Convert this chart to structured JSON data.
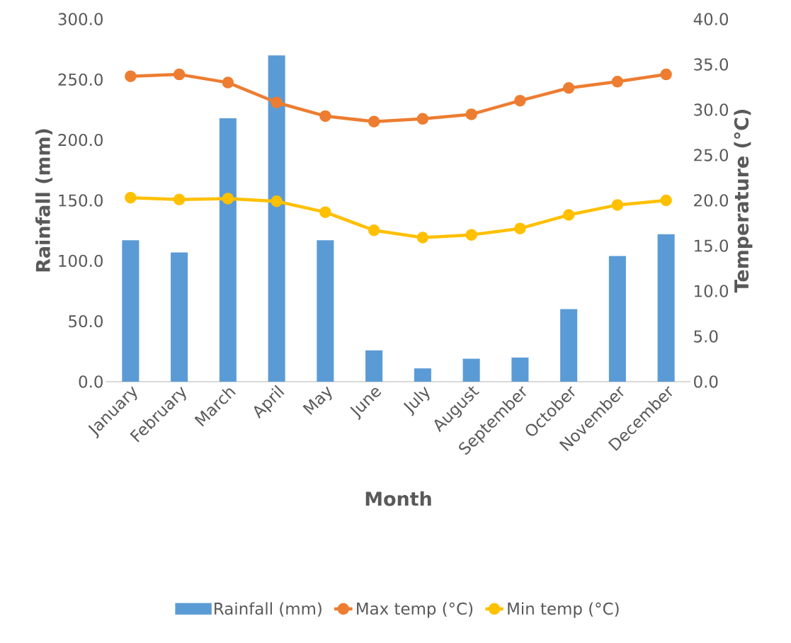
{
  "chart_data": {
    "type": "bar",
    "xlabel": "Month",
    "ylabel": "Rainfall (mm)",
    "y2label": "Temperature (°C)",
    "categories": [
      "January",
      "February",
      "March",
      "April",
      "May",
      "June",
      "July",
      "August",
      "September",
      "October",
      "November",
      "December"
    ],
    "series": [
      {
        "name": "Rainfall (mm)",
        "color": "#5b9bd5",
        "values": [
          117,
          107,
          218,
          270,
          117,
          26,
          11,
          19,
          20,
          60,
          104,
          122
        ]
      },
      {
        "name": "Max temp (°C)",
        "type": "line",
        "axis": "y2",
        "color": "#ed7d31",
        "values": [
          33.7,
          33.9,
          33.0,
          30.8,
          29.3,
          28.7,
          29.0,
          29.5,
          31.0,
          32.4,
          33.1,
          33.9
        ]
      },
      {
        "name": "Min temp (°C)",
        "type": "line",
        "axis": "y2",
        "color": "#ffc000",
        "values": [
          20.3,
          20.1,
          20.2,
          19.9,
          18.7,
          16.7,
          15.9,
          16.2,
          16.9,
          18.4,
          19.5,
          20.0
        ]
      }
    ],
    "ylim": [
      0,
      300
    ],
    "yticks": [
      {
        "value": 0,
        "label": "0.0"
      },
      {
        "value": 50,
        "label": "50.0"
      },
      {
        "value": 100,
        "label": "100.0"
      },
      {
        "value": 150,
        "label": "150.0"
      },
      {
        "value": 200,
        "label": "200.0"
      },
      {
        "value": 250,
        "label": "250.0"
      },
      {
        "value": 300,
        "label": "300.0"
      }
    ],
    "y2lim": [
      0,
      40
    ],
    "y2ticks": [
      {
        "value": 0,
        "label": "0.0"
      },
      {
        "value": 5,
        "label": "5.0"
      },
      {
        "value": 10,
        "label": "10.0"
      },
      {
        "value": 15,
        "label": "15.0"
      },
      {
        "value": 20,
        "label": "20.0"
      },
      {
        "value": 25,
        "label": "25.0"
      },
      {
        "value": 30,
        "label": "30.0"
      },
      {
        "value": 35,
        "label": "35.0"
      },
      {
        "value": 40,
        "label": "40.0"
      }
    ],
    "legend": "bottom",
    "marker": "circle"
  }
}
